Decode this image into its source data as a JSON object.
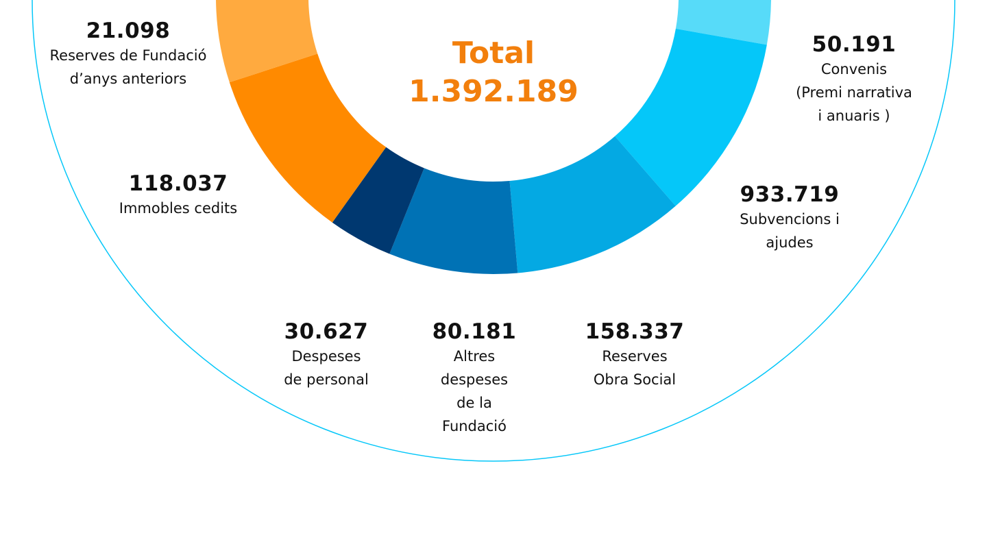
{
  "chart_data": {
    "type": "pie",
    "variant": "donut",
    "title": "Total",
    "total": "1.392.189",
    "total_value": 1392189,
    "slices": [
      {
        "value": 50191,
        "value_label": "50.191",
        "label": "Convenis\n(Premi narrativa\ni anuaris )",
        "color": "#57DBF9"
      },
      {
        "value": 933719,
        "value_label": "933.719",
        "label": "Subvencions i\najudes",
        "color": "#05C7F9"
      },
      {
        "value": 158337,
        "value_label": "158.337",
        "label": "Reserves\nObra Social",
        "color": "#04A9E3"
      },
      {
        "value": 80181,
        "value_label": "80.181",
        "label": "Altres\ndespeses\nde la\nFundació",
        "color": "#0072B5"
      },
      {
        "value": 30627,
        "value_label": "30.627",
        "label": "Despeses\nde personal",
        "color": "#003870"
      },
      {
        "value": 118037,
        "value_label": "118.037",
        "label": "Immobles cedits",
        "color": "#FF8A00"
      },
      {
        "value": 21098,
        "value_label": "21.098",
        "label": "Reserves de Fundació\nd’anys anteriors",
        "color": "#FFAA3F"
      }
    ],
    "outline_color": "#05C7F9"
  }
}
